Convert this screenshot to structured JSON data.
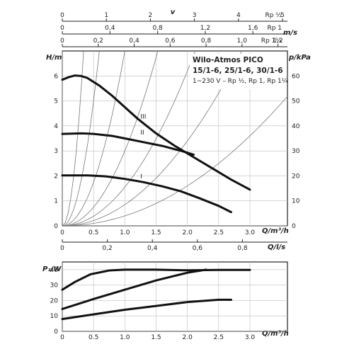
{
  "chart_data": [
    {
      "type": "line",
      "title": "Wilo-Atmos PICO",
      "subtitle": "15/1-6, 25/1-6, 30/1-6",
      "voltage_line": "1~230 V – Rp ½, Rp 1, Rp 1¼",
      "xlabel": "Q/m³/h",
      "ylabel": "H/m",
      "ylabel_right": "p/kPa",
      "xlim": [
        0,
        3.6
      ],
      "ylim": [
        0,
        7
      ],
      "ylim_right": [
        0,
        70
      ],
      "x_ticks": [
        "0",
        "0.5",
        "1.0",
        "1.5",
        "2.0",
        "2.5",
        "3.0"
      ],
      "y_ticks": [
        "0",
        "1",
        "2",
        "3",
        "4",
        "5",
        "6"
      ],
      "y_right_ticks": [
        "0",
        "10",
        "20",
        "30",
        "40",
        "50",
        "60"
      ],
      "grid": true,
      "series": [
        {
          "name": "III",
          "x": [
            0,
            0.1,
            0.2,
            0.3,
            0.4,
            0.6,
            0.8,
            1.0,
            1.2,
            1.5,
            1.8,
            2.1,
            2.4,
            2.7,
            3.0
          ],
          "y": [
            5.85,
            5.95,
            6.02,
            6.0,
            5.92,
            5.6,
            5.2,
            4.75,
            4.3,
            3.7,
            3.2,
            2.75,
            2.3,
            1.85,
            1.45
          ]
        },
        {
          "name": "II",
          "x": [
            0,
            0.3,
            0.5,
            0.8,
            1.0,
            1.3,
            1.6,
            1.9,
            2.1
          ],
          "y": [
            3.68,
            3.7,
            3.68,
            3.6,
            3.5,
            3.35,
            3.2,
            3.0,
            2.85
          ]
        },
        {
          "name": "I",
          "x": [
            0,
            0.4,
            0.7,
            1.0,
            1.3,
            1.6,
            1.9,
            2.2,
            2.5,
            2.7
          ],
          "y": [
            2.02,
            2.02,
            1.98,
            1.88,
            1.75,
            1.58,
            1.38,
            1.1,
            0.8,
            0.55
          ]
        }
      ],
      "system_curve_coefficients": [
        60,
        20,
        7,
        3,
        1.55,
        0.85,
        0.4
      ]
    },
    {
      "type": "line",
      "xlabel": "Q/m³/h",
      "ylabel": "P₁/W",
      "xlim": [
        0,
        3.6
      ],
      "ylim": [
        0,
        45
      ],
      "x_ticks": [
        "0",
        "0.5",
        "1.0",
        "1.5",
        "2.0",
        "2.5",
        "3.0"
      ],
      "y_ticks": [
        "0",
        "10",
        "20",
        "30",
        "40"
      ],
      "grid": true,
      "series": [
        {
          "name": "III",
          "x": [
            0,
            0.2,
            0.45,
            0.75,
            1.0,
            1.5,
            2.0,
            2.5,
            3.0
          ],
          "y": [
            27,
            32,
            37,
            39.5,
            40,
            40,
            39.6,
            39.8,
            39.8
          ]
        },
        {
          "name": "II",
          "x": [
            0,
            0.5,
            1.0,
            1.5,
            2.0,
            2.3
          ],
          "y": [
            14.5,
            21,
            27,
            33,
            38,
            40
          ]
        },
        {
          "name": "I",
          "x": [
            0,
            0.5,
            1.0,
            1.5,
            2.0,
            2.5,
            2.7
          ],
          "y": [
            8,
            11,
            14,
            16.5,
            19,
            20.5,
            20.5
          ]
        }
      ]
    }
  ],
  "scales": {
    "velocity_label": "v",
    "velocity_unit": "m/s",
    "flow_unit": "Q/l/s",
    "rows": [
      {
        "pipe": "Rp ½",
        "ticks": [
          "0",
          "1",
          "2",
          "3",
          "4",
          "5"
        ],
        "at": [
          0,
          1,
          2,
          3,
          4,
          5
        ],
        "per_m3h": 1.42
      },
      {
        "pipe": "Rp 1",
        "ticks": [
          "0",
          "0,4",
          "0,8",
          "1,2",
          "1,6"
        ],
        "at": [
          0,
          0.4,
          0.8,
          1.2,
          1.6
        ],
        "per_m3h": 0.525
      },
      {
        "pipe": "Rp 1¼",
        "ticks": [
          "0",
          "0,2",
          "0,4",
          "0,6",
          "0,8",
          "1,0",
          "1,2"
        ],
        "at": [
          0,
          0.2,
          0.4,
          0.6,
          0.8,
          1.0,
          1.2
        ],
        "per_m3h": 0.348
      }
    ],
    "ls_ticks": [
      "0",
      "0,2",
      "0,4",
      "0,6",
      "0,8"
    ],
    "ls_at": [
      0,
      0.2,
      0.4,
      0.6,
      0.8
    ]
  }
}
